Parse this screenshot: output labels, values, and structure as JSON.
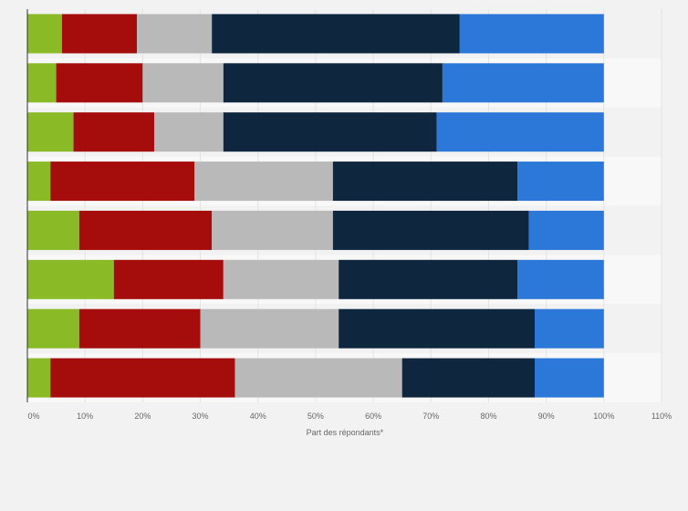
{
  "chart_data": {
    "type": "bar",
    "orientation": "horizontal",
    "stacked": true,
    "title": "",
    "xlabel": "Part des répondants*",
    "ylabel": "",
    "xlim": [
      0,
      110
    ],
    "x_ticks": [
      0,
      10,
      20,
      30,
      40,
      50,
      60,
      70,
      80,
      90,
      100,
      110
    ],
    "x_tick_labels": [
      "0%",
      "10%",
      "20%",
      "30%",
      "40%",
      "50%",
      "60%",
      "70%",
      "80%",
      "90%",
      "100%",
      "110%"
    ],
    "grid": true,
    "legend": "none",
    "categories": [
      "",
      "",
      "",
      "",
      "",
      "",
      "",
      ""
    ],
    "series": [
      {
        "name": "",
        "color": "#8aba25",
        "values": [
          6,
          5,
          8,
          4,
          9,
          15,
          9,
          4
        ]
      },
      {
        "name": "",
        "color": "#a50c0c",
        "values": [
          13,
          15,
          14,
          25,
          23,
          19,
          21,
          32
        ]
      },
      {
        "name": "",
        "color": "#b9b9b9",
        "values": [
          13,
          14,
          12,
          24,
          21,
          20,
          24,
          29
        ]
      },
      {
        "name": "",
        "color": "#0f263f",
        "values": [
          43,
          38,
          37,
          32,
          34,
          31,
          34,
          23
        ]
      },
      {
        "name": "",
        "color": "#2c78d9",
        "values": [
          25,
          28,
          29,
          15,
          13,
          15,
          12,
          12
        ]
      }
    ]
  }
}
